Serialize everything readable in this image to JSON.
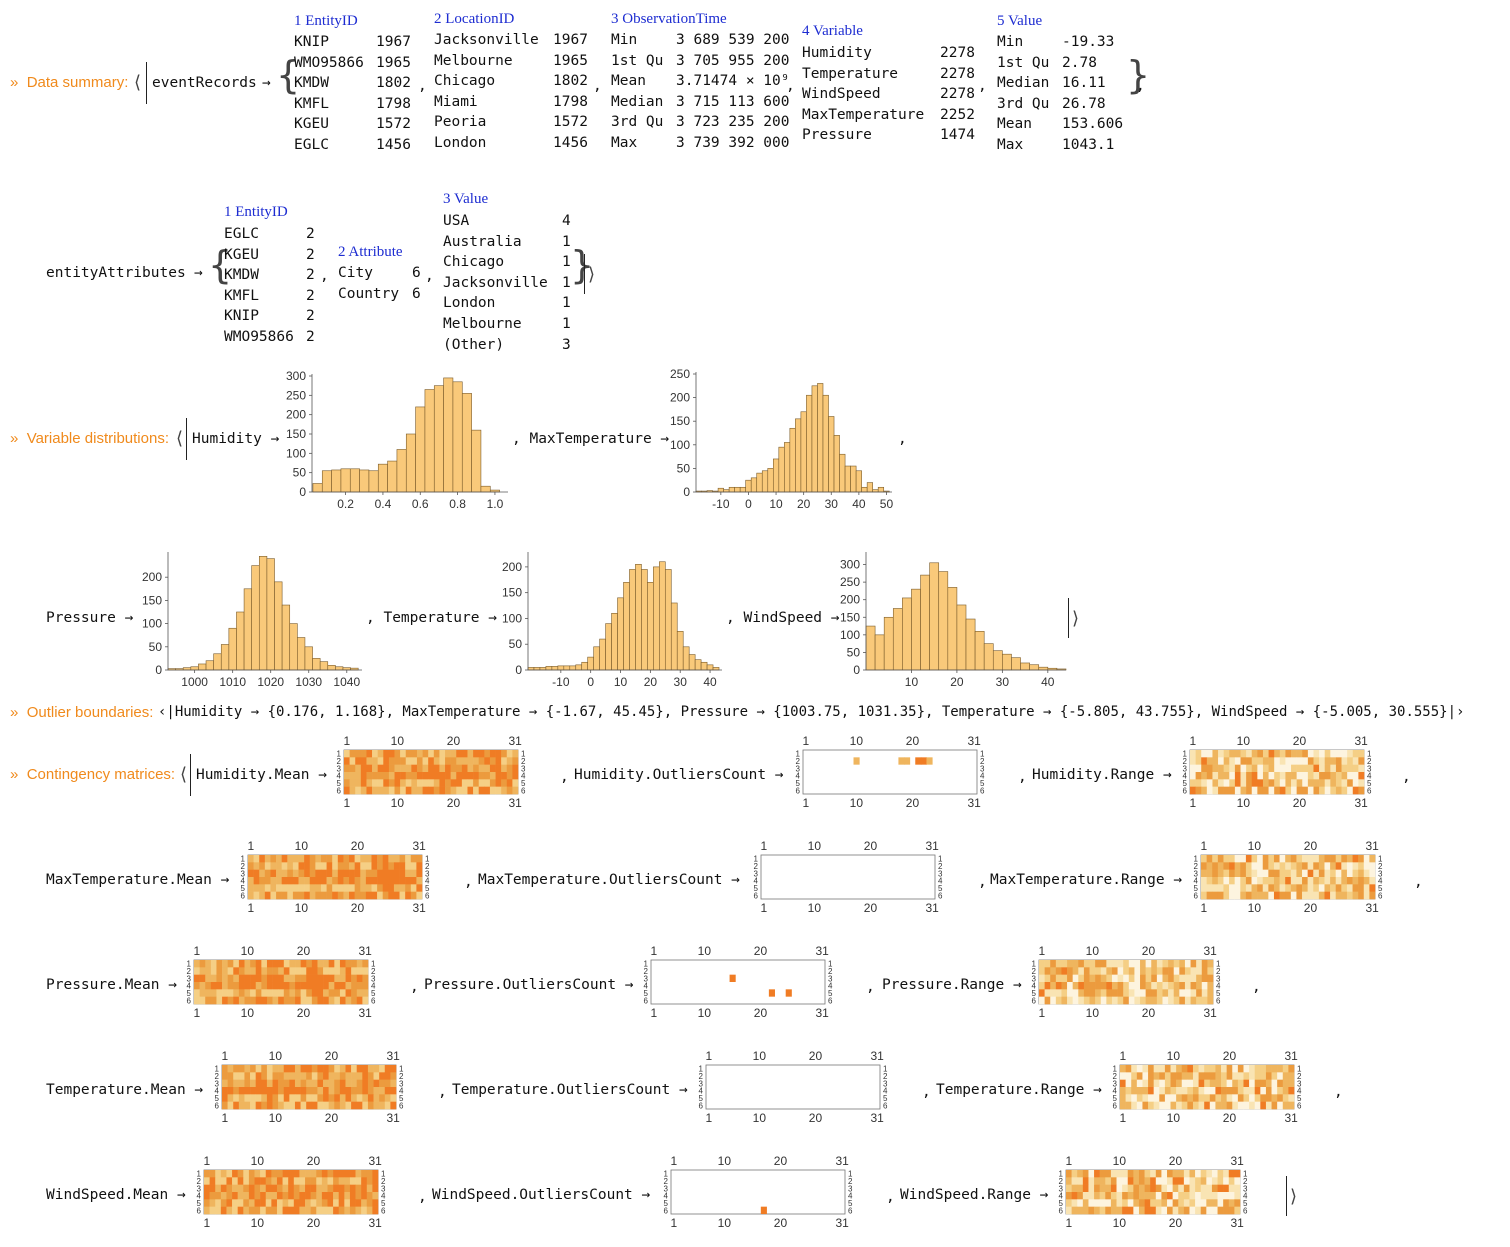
{
  "colors": {
    "accent": "#f08a1c",
    "column_header": "#1d2cd1",
    "bar_fill": "#f9c97a",
    "bar_stroke": "#7a5b2a"
  },
  "summary": {
    "prompt": "»",
    "label": "Data summary:",
    "dataset_name": "eventRecords",
    "arrow": "→",
    "columns": [
      {
        "header": "1 EntityID",
        "rows": [
          [
            "KNIP",
            "1967"
          ],
          [
            "WMO95866",
            "1965"
          ],
          [
            "KMDW",
            "1802"
          ],
          [
            "KMFL",
            "1798"
          ],
          [
            "KGEU",
            "1572"
          ],
          [
            "EGLC",
            "1456"
          ]
        ]
      },
      {
        "header": "2 LocationID",
        "rows": [
          [
            "Jacksonville",
            "1967"
          ],
          [
            "Melbourne",
            "1965"
          ],
          [
            "Chicago",
            "1802"
          ],
          [
            "Miami",
            "1798"
          ],
          [
            "Peoria",
            "1572"
          ],
          [
            "London",
            "1456"
          ]
        ]
      },
      {
        "header": "3 ObservationTime",
        "rows": [
          [
            "Min",
            "3 689 539 200"
          ],
          [
            "1st Qu",
            "3 705 955 200"
          ],
          [
            "Mean",
            "3.71474 × 10⁹"
          ],
          [
            "Median",
            "3 715 113 600"
          ],
          [
            "3rd Qu",
            "3 723 235 200"
          ],
          [
            "Max",
            "3 739 392 000"
          ]
        ]
      },
      {
        "header": "4 Variable",
        "rows": [
          [
            "Humidity",
            "2278"
          ],
          [
            "Temperature",
            "2278"
          ],
          [
            "WindSpeed",
            "2278"
          ],
          [
            "MaxTemperature",
            "2252"
          ],
          [
            "Pressure",
            "1474"
          ]
        ]
      },
      {
        "header": "5 Value",
        "rows": [
          [
            "Min",
            "-19.33"
          ],
          [
            "1st Qu",
            "2.78"
          ],
          [
            "Median",
            "16.11"
          ],
          [
            "3rd Qu",
            "26.78"
          ],
          [
            "Mean",
            "153.606"
          ],
          [
            "Max",
            "1043.1"
          ]
        ]
      }
    ],
    "attributes_name": "entityAttributes",
    "attr_columns": [
      {
        "header": "1 EntityID",
        "rows": [
          [
            "EGLC",
            "2"
          ],
          [
            "KGEU",
            "2"
          ],
          [
            "KMDW",
            "2"
          ],
          [
            "KMFL",
            "2"
          ],
          [
            "KNIP",
            "2"
          ],
          [
            "WMO95866",
            "2"
          ]
        ]
      },
      {
        "header": "2 Attribute",
        "rows": [
          [
            "City",
            "6"
          ],
          [
            "Country",
            "6"
          ]
        ]
      },
      {
        "header": "3 Value",
        "rows": [
          [
            "USA",
            "4"
          ],
          [
            "Australia",
            "1"
          ],
          [
            "Chicago",
            "1"
          ],
          [
            "Jacksonville",
            "1"
          ],
          [
            "London",
            "1"
          ],
          [
            "Melbourne",
            "1"
          ],
          [
            "(Other)",
            "3"
          ]
        ]
      }
    ]
  },
  "distributions": {
    "prompt": "»",
    "label": "Variable distributions:",
    "names": [
      "Humidity",
      "MaxTemperature",
      "Pressure",
      "Temperature",
      "WindSpeed"
    ]
  },
  "outliers": {
    "prompt": "»",
    "label": "Outlier boundaries:",
    "text": "Humidity → {0.176, 1.168}, MaxTemperature → {-1.67, 45.45}, Pressure → {1003.75, 1031.35}, Temperature → {-5.805, 43.755}, WindSpeed → {-5.005, 30.555}"
  },
  "contingency": {
    "prompt": "»",
    "label": "Contingency matrices:",
    "names": [
      "Humidity.Mean",
      "Humidity.OutliersCount",
      "Humidity.Range",
      "MaxTemperature.Mean",
      "MaxTemperature.OutliersCount",
      "MaxTemperature.Range",
      "Pressure.Mean",
      "Pressure.OutliersCount",
      "Pressure.Range",
      "Temperature.Mean",
      "Temperature.OutliersCount",
      "Temperature.Range",
      "WindSpeed.Mean",
      "WindSpeed.OutliersCount",
      "WindSpeed.Range"
    ],
    "x_ticks": [
      "1",
      "10",
      "20",
      "31"
    ],
    "y_ticks": [
      "1",
      "2",
      "3",
      "4",
      "5",
      "6"
    ]
  },
  "chart_data": [
    {
      "type": "bar",
      "title": "Humidity",
      "x": [
        0.05,
        0.1,
        0.15,
        0.2,
        0.25,
        0.3,
        0.35,
        0.4,
        0.45,
        0.5,
        0.55,
        0.6,
        0.65,
        0.7,
        0.75,
        0.8,
        0.85,
        0.9,
        0.95,
        1.0
      ],
      "values": [
        22,
        55,
        57,
        60,
        60,
        57,
        55,
        72,
        80,
        110,
        150,
        220,
        265,
        275,
        295,
        285,
        255,
        160,
        15,
        5
      ],
      "ylim": [
        0,
        300
      ],
      "xlim": [
        0.02,
        1.07
      ],
      "xticks": [
        "0.2",
        "0.4",
        "0.6",
        "0.8",
        "1.0"
      ],
      "yticks": [
        "0",
        "50",
        "100",
        "150",
        "200",
        "250",
        "300"
      ]
    },
    {
      "type": "bar",
      "title": "MaxTemperature",
      "x": [
        -18,
        -16,
        -14,
        -12,
        -10,
        -8,
        -6,
        -4,
        -2,
        0,
        2,
        4,
        6,
        8,
        10,
        12,
        14,
        16,
        18,
        20,
        22,
        24,
        26,
        28,
        30,
        32,
        34,
        36,
        38,
        40,
        42,
        44,
        46,
        48,
        50
      ],
      "values": [
        2,
        2,
        3,
        2,
        8,
        5,
        10,
        10,
        10,
        25,
        30,
        40,
        45,
        50,
        70,
        95,
        105,
        135,
        155,
        170,
        205,
        225,
        230,
        205,
        160,
        120,
        80,
        55,
        55,
        45,
        10,
        20,
        5,
        10,
        2
      ],
      "ylim": [
        0,
        250
      ],
      "xlim": [
        -19,
        52
      ],
      "xticks": [
        "-10",
        "0",
        "10",
        "20",
        "30",
        "40",
        "50"
      ],
      "yticks": [
        "0",
        "50",
        "100",
        "150",
        "200",
        "250"
      ]
    },
    {
      "type": "bar",
      "title": "Pressure",
      "x": [
        994,
        996,
        998,
        1000,
        1002,
        1004,
        1006,
        1008,
        1010,
        1012,
        1014,
        1016,
        1018,
        1020,
        1022,
        1024,
        1026,
        1028,
        1030,
        1032,
        1034,
        1036,
        1038,
        1040,
        1042
      ],
      "values": [
        3,
        3,
        5,
        7,
        13,
        20,
        35,
        55,
        90,
        125,
        175,
        225,
        245,
        240,
        190,
        140,
        100,
        70,
        50,
        25,
        18,
        10,
        7,
        5,
        4
      ],
      "ylim": [
        0,
        250
      ],
      "xlim": [
        993,
        1044
      ],
      "xticks": [
        "1000",
        "1010",
        "1020",
        "1030",
        "1040"
      ],
      "yticks": [
        "0",
        "50",
        "100",
        "150",
        "200"
      ]
    },
    {
      "type": "bar",
      "title": "Temperature",
      "x": [
        -20,
        -18,
        -16,
        -14,
        -12,
        -10,
        -8,
        -6,
        -4,
        -2,
        0,
        2,
        4,
        6,
        8,
        10,
        12,
        14,
        16,
        18,
        20,
        22,
        24,
        26,
        28,
        30,
        32,
        34,
        36,
        38,
        40,
        42
      ],
      "values": [
        5,
        5,
        5,
        7,
        7,
        8,
        8,
        8,
        10,
        15,
        25,
        45,
        60,
        90,
        110,
        140,
        170,
        195,
        205,
        195,
        170,
        200,
        210,
        195,
        130,
        75,
        45,
        30,
        20,
        15,
        10,
        5
      ],
      "ylim": [
        0,
        225
      ],
      "xlim": [
        -21,
        44
      ],
      "xticks": [
        "-10",
        "0",
        "10",
        "20",
        "30",
        "40"
      ],
      "yticks": [
        "0",
        "50",
        "100",
        "150",
        "200"
      ]
    },
    {
      "type": "bar",
      "title": "WindSpeed",
      "x": [
        1,
        3,
        5,
        7,
        9,
        11,
        13,
        15,
        17,
        19,
        21,
        23,
        25,
        27,
        29,
        31,
        33,
        35,
        37,
        39,
        41,
        43
      ],
      "values": [
        125,
        100,
        150,
        175,
        205,
        230,
        270,
        305,
        280,
        235,
        185,
        145,
        110,
        75,
        55,
        45,
        35,
        20,
        15,
        8,
        5,
        3
      ],
      "ylim": [
        0,
        330
      ],
      "xlim": [
        0,
        44
      ],
      "xticks": [
        "10",
        "20",
        "30",
        "40"
      ],
      "yticks": [
        "0",
        "50",
        "100",
        "150",
        "200",
        "250",
        "300"
      ]
    }
  ]
}
